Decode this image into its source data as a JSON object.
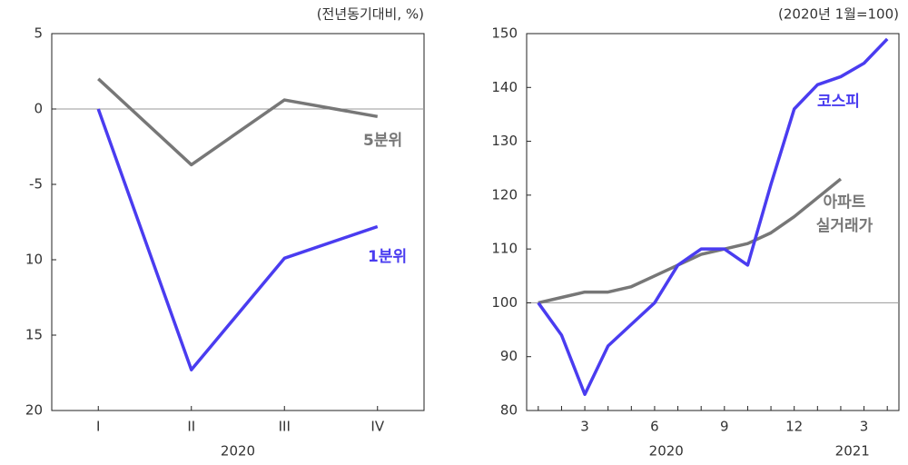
{
  "chart_data": [
    {
      "type": "line",
      "unit_note": "(전년동기대비, %)",
      "x_label": "2020",
      "categories": [
        "I",
        "II",
        "III",
        "IV"
      ],
      "series": [
        {
          "name": "5분위",
          "color": "#777777",
          "values": [
            2,
            -3.7,
            0.6,
            -0.5
          ]
        },
        {
          "name": "1분위",
          "color": "#4a3cf0",
          "values": [
            0,
            -17.3,
            -9.9,
            -7.8
          ]
        }
      ],
      "ylim": [
        -20,
        5
      ],
      "yticks": [
        5,
        0,
        -5,
        {
          "value": -10,
          "label": "10"
        },
        {
          "value": -15,
          "label": "15"
        },
        {
          "value": -20,
          "label": "20"
        }
      ],
      "reference_line": 0
    },
    {
      "type": "line",
      "unit_note": "(2020년 1월=100)",
      "x_group_labels": [
        "2020",
        "2021"
      ],
      "categories": [
        null,
        null,
        "3",
        null,
        null,
        "6",
        null,
        null,
        "9",
        null,
        null,
        "12",
        null,
        null,
        "3",
        null
      ],
      "series": [
        {
          "name": "아파트 실거래가",
          "color": "#777777",
          "values": [
            100,
            101,
            102,
            102,
            103,
            105,
            107,
            109,
            110,
            111,
            113,
            116,
            119.5,
            123,
            null,
            null
          ]
        },
        {
          "name": "코스피",
          "color": "#4a3cf0",
          "values": [
            100,
            94,
            83,
            92,
            96,
            100,
            107,
            110,
            110,
            107,
            122,
            136,
            140.5,
            142,
            144.5,
            149
          ]
        }
      ],
      "ylim": [
        80,
        150
      ],
      "yticks": [
        80,
        90,
        100,
        110,
        120,
        130,
        140,
        150
      ],
      "reference_line": 100
    }
  ]
}
